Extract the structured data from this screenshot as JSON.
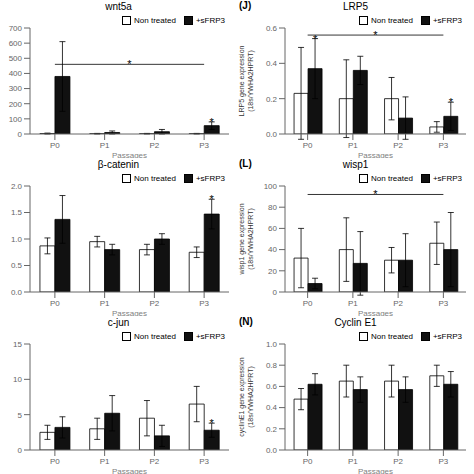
{
  "chart_data": [
    {
      "type": "bar",
      "title": "wnt5a",
      "xlabel": "Passages",
      "categories": [
        "P0",
        "P1",
        "P2",
        "P3"
      ],
      "series": [
        {
          "name": "Non treated",
          "color": "white",
          "values": [
            3,
            2,
            2,
            2
          ],
          "errors": [
            3,
            2,
            2,
            2
          ]
        },
        {
          "name": "+sFRP3",
          "color": "#111111",
          "values": [
            380,
            10,
            15,
            55
          ],
          "errors": [
            230,
            10,
            15,
            25
          ]
        }
      ],
      "ylim": [
        0,
        700
      ],
      "yticks": [
        0,
        100,
        200,
        300,
        400,
        500,
        600,
        700
      ],
      "grid": false,
      "legend": "upper right",
      "annotations": [
        {
          "text": "*",
          "from": "P0",
          "to": "P3",
          "y": 460
        },
        {
          "text": "*",
          "category": "P3",
          "series": "+sFRP3"
        }
      ]
    },
    {
      "type": "bar",
      "title": "LRP5",
      "xlabel": "Passages",
      "ylabel": "LRP5 gene expression\n(18s/YWHA2HPRT)",
      "categories": [
        "P0",
        "P1",
        "P2",
        "P3"
      ],
      "series": [
        {
          "name": "Non treated",
          "color": "white",
          "values": [
            0.23,
            0.2,
            0.2,
            0.04
          ],
          "errors": [
            0.26,
            0.22,
            0.12,
            0.03
          ]
        },
        {
          "name": "+sFRP3",
          "color": "#111111",
          "values": [
            0.37,
            0.36,
            0.09,
            0.1
          ],
          "errors": [
            0.17,
            0.08,
            0.12,
            0.08
          ]
        }
      ],
      "ylim": [
        0,
        0.6
      ],
      "yticks": [
        {
          "value": 0,
          "label": "0.0"
        },
        0.2,
        0.4,
        0.6
      ],
      "grid": false,
      "legend": "upper right",
      "annotations": [
        {
          "text": "(J)"
        },
        {
          "text": "*",
          "from": "P0",
          "to": "P3",
          "y": 0.56
        },
        {
          "text": "*",
          "category": "P0",
          "series": "+sFRP3"
        },
        {
          "text": "*",
          "category": "P3",
          "series": "+sFRP3"
        }
      ]
    },
    {
      "type": "bar",
      "title": "β-catenin",
      "xlabel": "Passages",
      "categories": [
        "P0",
        "P1",
        "P2",
        "P3"
      ],
      "series": [
        {
          "name": "Non treated",
          "color": "white",
          "values": [
            0.87,
            0.95,
            0.8,
            0.75
          ],
          "errors": [
            0.15,
            0.1,
            0.1,
            0.1
          ]
        },
        {
          "name": "+sFRP3",
          "color": "#111111",
          "values": [
            1.37,
            0.8,
            1.0,
            1.47
          ],
          "errors": [
            0.45,
            0.1,
            0.1,
            0.28
          ]
        }
      ],
      "ylim": [
        0,
        2.0
      ],
      "yticks": [
        {
          "value": 0,
          "label": "0.0"
        },
        0.5,
        {
          "value": 1,
          "label": "1.0"
        },
        1.5,
        {
          "value": 2,
          "label": "2.0"
        }
      ],
      "grid": false,
      "legend": "upper right",
      "annotations": [
        {
          "text": "*",
          "category": "P3",
          "series": "+sFRP3"
        }
      ]
    },
    {
      "type": "bar",
      "title": "wisp1",
      "xlabel": "Passages",
      "ylabel": "wisp1 gene expression\n(18s/YWHA2HPRT)",
      "categories": [
        "P0",
        "P1",
        "P2",
        "P3"
      ],
      "series": [
        {
          "name": "Non treated",
          "color": "white",
          "values": [
            32,
            40,
            30,
            46
          ],
          "errors": [
            28,
            30,
            12,
            20
          ]
        },
        {
          "name": "+sFRP3",
          "color": "#111111",
          "values": [
            8,
            27,
            30,
            40
          ],
          "errors": [
            5,
            30,
            25,
            35
          ]
        }
      ],
      "ylim": [
        0,
        100
      ],
      "yticks": [
        0,
        20,
        40,
        60,
        80,
        100
      ],
      "grid": false,
      "legend": "upper right",
      "annotations": [
        {
          "text": "(L)"
        },
        {
          "text": "*",
          "from": "P0",
          "to": "P3",
          "y": 92
        }
      ]
    },
    {
      "type": "bar",
      "title": "c-jun",
      "xlabel": "Passages",
      "categories": [
        "P0",
        "P1",
        "P2",
        "P3"
      ],
      "series": [
        {
          "name": "Non treated",
          "color": "white",
          "values": [
            2.5,
            3.0,
            4.5,
            6.5
          ],
          "errors": [
            1.0,
            1.5,
            2.5,
            2.5
          ]
        },
        {
          "name": "+sFRP3",
          "color": "#111111",
          "values": [
            3.2,
            5.2,
            2.0,
            2.8
          ],
          "errors": [
            1.5,
            2.5,
            1.5,
            1.0
          ]
        }
      ],
      "ylim": [
        0,
        15
      ],
      "yticks": [
        0,
        5,
        10,
        15
      ],
      "grid": false,
      "legend": "upper right",
      "annotations": [
        {
          "text": "*",
          "category": "P3",
          "series": "+sFRP3"
        }
      ]
    },
    {
      "type": "bar",
      "title": "Cyclin E1",
      "xlabel": "Passages",
      "ylabel": "cyclinE1 gene expression\n(18s/YWHA2HPRT)",
      "categories": [
        "P0",
        "P1",
        "P2",
        "P3"
      ],
      "series": [
        {
          "name": "Non treated",
          "color": "white",
          "values": [
            0.48,
            0.65,
            0.65,
            0.7
          ],
          "errors": [
            0.1,
            0.15,
            0.15,
            0.1
          ]
        },
        {
          "name": "+sFRP3",
          "color": "#111111",
          "values": [
            0.62,
            0.57,
            0.57,
            0.62
          ],
          "errors": [
            0.1,
            0.12,
            0.12,
            0.12
          ]
        }
      ],
      "ylim": [
        0,
        1.0
      ],
      "yticks": [
        {
          "value": 0,
          "label": "0.0"
        },
        0.2,
        0.4,
        0.6,
        0.8,
        {
          "value": 1,
          "label": "1.0"
        }
      ],
      "grid": false,
      "legend": "upper right",
      "annotations": [
        {
          "text": "(N)"
        }
      ]
    }
  ]
}
